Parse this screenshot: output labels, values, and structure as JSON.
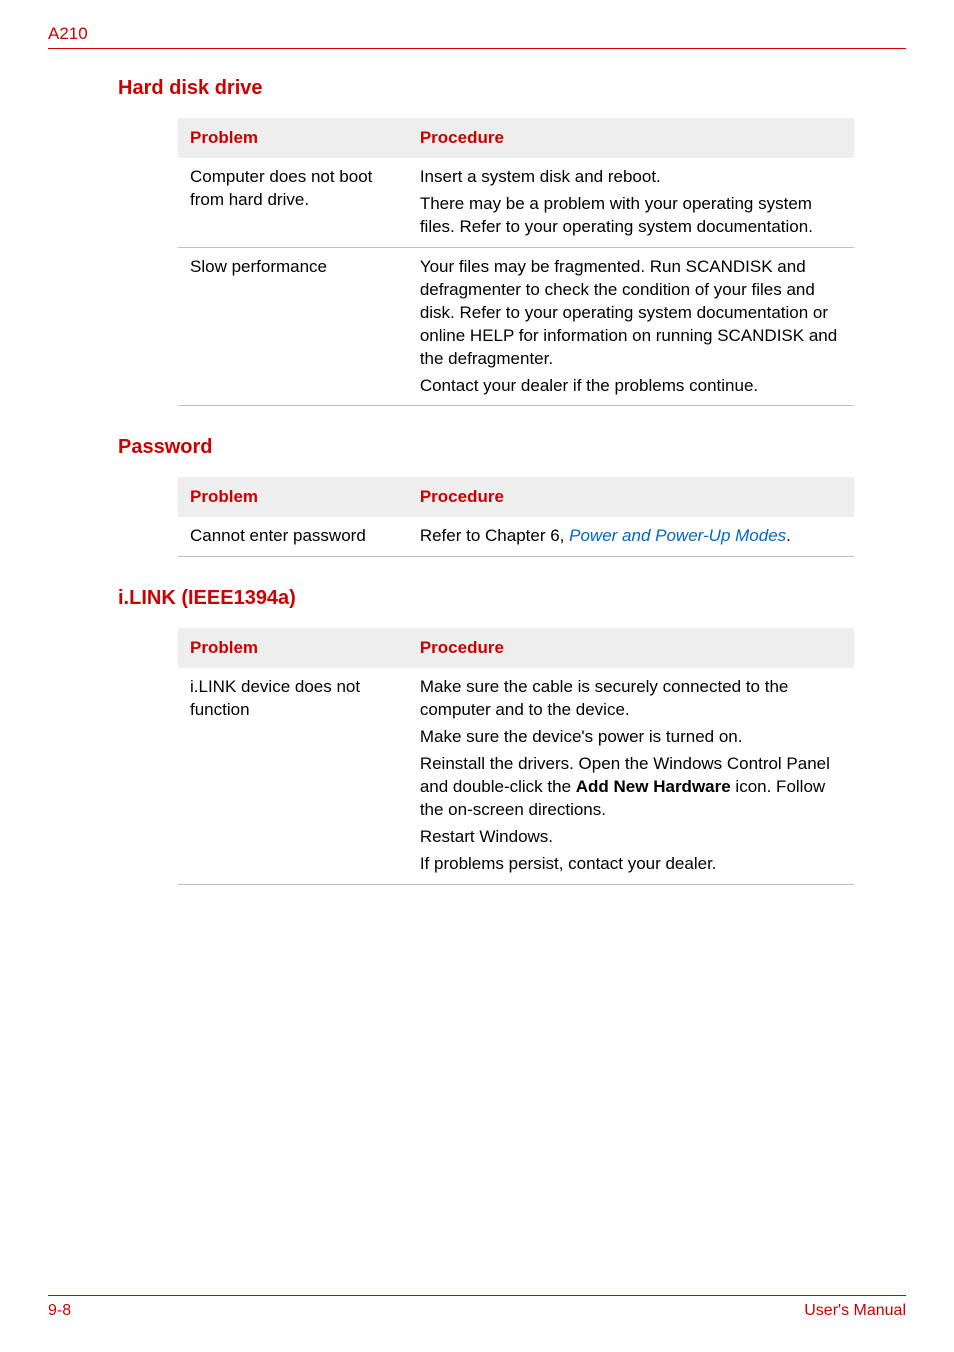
{
  "header": {
    "model": "A210"
  },
  "colors": {
    "accent": "#cc0000",
    "link": "#0066cc",
    "table_header_bg": "#eeeeee",
    "row_border": "#bfbfbf",
    "text": "#000000",
    "background": "#ffffff"
  },
  "sections": {
    "hdd": {
      "title": "Hard disk drive",
      "col_problem": "Problem",
      "col_procedure": "Procedure",
      "rows": {
        "r1": {
          "problem": "Computer does not boot from hard drive.",
          "proc_p1": "Insert a system disk and reboot.",
          "proc_p2": "There may be a problem with your operating system files. Refer to your operating system documentation."
        },
        "r2": {
          "problem": "Slow performance",
          "proc_p1": "Your files may be fragmented. Run SCANDISK and defragmenter to check the condition of your files and disk. Refer to your operating system documentation or online HELP for information on running SCANDISK and the defragmenter.",
          "proc_p2": "Contact your dealer if the problems continue."
        }
      }
    },
    "password": {
      "title": "Password",
      "col_problem": "Problem",
      "col_procedure": "Procedure",
      "rows": {
        "r1": {
          "problem": "Cannot enter password",
          "proc_prefix": "Refer to Chapter 6, ",
          "proc_link": "Power and Power-Up Modes",
          "proc_suffix": "."
        }
      }
    },
    "ilink": {
      "title": "i.LINK (IEEE1394a)",
      "col_problem": "Problem",
      "col_procedure": "Procedure",
      "rows": {
        "r1": {
          "problem": "i.LINK device does not function",
          "proc_p1": "Make sure the cable is securely connected to the computer and to the device.",
          "proc_p2": "Make sure the device's power is turned on.",
          "proc_p3_a": "Reinstall the drivers. Open the Windows Control Panel and double-click the ",
          "proc_p3_bold": "Add New Hardware",
          "proc_p3_b": " icon. Follow the on-screen directions.",
          "proc_p4": "Restart Windows.",
          "proc_p5": "If problems persist, contact your dealer."
        }
      }
    }
  },
  "footer": {
    "page": "9-8",
    "manual": "User's Manual"
  }
}
